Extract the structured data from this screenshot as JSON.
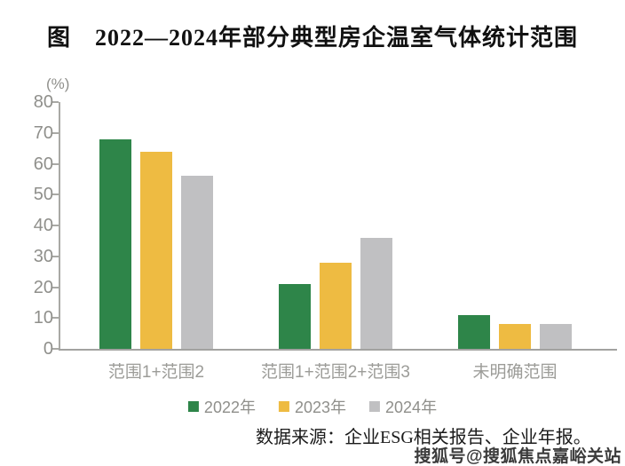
{
  "title": "图　2022—2024年部分典型房企温室气体统计范围",
  "source_note": "数据来源：企业ESG相关报告、企业年报。",
  "watermark": "搜狐号@搜狐焦点嘉峪关站",
  "colors": {
    "series_2022": "#2e8549",
    "series_2023": "#eebb42",
    "series_2024": "#c0c0c2",
    "axis": "#a9a9a5",
    "axis_text": "#8f8f8b",
    "title_text": "#111111"
  },
  "chart_data": {
    "type": "bar",
    "title": "图　2022—2024年部分典型房企温室气体统计范围",
    "unit_label": "(%)",
    "xlabel": "",
    "ylabel": "(%)",
    "ylim": [
      0,
      80
    ],
    "ytick_step": 10,
    "yticks": [
      0,
      10,
      20,
      30,
      40,
      50,
      60,
      70,
      80
    ],
    "grid": false,
    "legend_position": "bottom",
    "categories": [
      "范围1+范围2",
      "范围1+范围2+范围3",
      "未明确范围"
    ],
    "series": [
      {
        "name": "2022年",
        "color": "#2e8549",
        "values": [
          68,
          21,
          11
        ]
      },
      {
        "name": "2023年",
        "color": "#eebb42",
        "values": [
          64,
          28,
          8
        ]
      },
      {
        "name": "2024年",
        "color": "#c0c0c2",
        "values": [
          56,
          36,
          8
        ]
      }
    ]
  }
}
